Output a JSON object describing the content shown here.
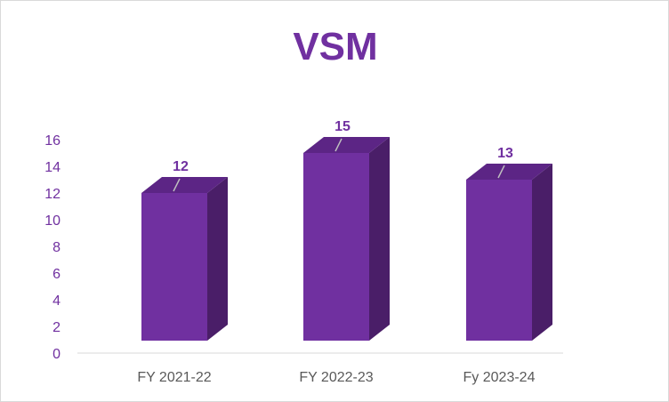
{
  "chart_data": {
    "type": "bar",
    "title": "VSM",
    "categories": [
      "FY 2021-22",
      "FY 2022-23",
      "Fy 2023-24"
    ],
    "series": [
      {
        "values": [
          12,
          15,
          13
        ]
      }
    ],
    "data_labels": [
      "12",
      "15",
      "13"
    ],
    "ylim": [
      0,
      16
    ],
    "yticks": [
      "0",
      "2",
      "4",
      "6",
      "8",
      "10",
      "12",
      "14",
      "16"
    ],
    "grid": false,
    "legend": "none",
    "style": "3d-column",
    "colors": {
      "bar_front": "#7030a0",
      "bar_side": "#4a1e68",
      "bar_top": "#5c2585",
      "title": "#7030a0",
      "axis_text": "#7030a0",
      "category_text": "#595959",
      "axis_line": "#d9d9d9",
      "leader_line": "#bfbfbf"
    }
  }
}
